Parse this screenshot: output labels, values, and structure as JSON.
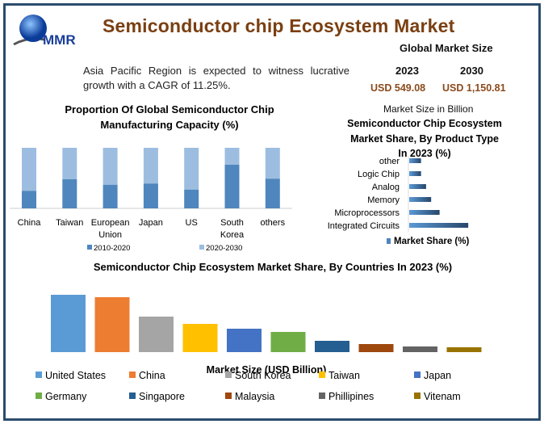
{
  "header": {
    "title": "Semiconductor chip Ecosystem Market",
    "logo_text": "MMR"
  },
  "summary": {
    "text_line1": "Asia Pacific Region is expected to witness lucrative",
    "text_line2": "growth with a CAGR of 11.25%."
  },
  "market_size": {
    "heading": "Global Market Size",
    "year1": "2023",
    "year2": "2030",
    "value1": "USD 549.08",
    "value2": "USD 1,150.81",
    "note": "Market Size in Billion"
  },
  "colors": {
    "title": "#7a3f12",
    "border": "#2b4c6f",
    "dark_blue": "#4f86bd",
    "light_blue": "#9dbde0"
  },
  "chart_data": [
    {
      "type": "bar",
      "stacked": true,
      "title_line1": "Proportion Of Global Semiconductor Chip",
      "title_line2": "Manufacturing Capacity (%)",
      "categories": [
        "China",
        "Taiwan",
        "European Union",
        "Japan",
        "US",
        "South Korea",
        "others"
      ],
      "series": [
        {
          "name": "2010-2020",
          "values": [
            29,
            48,
            39,
            41,
            31,
            72,
            49
          ],
          "color": "#4f86bd"
        },
        {
          "name": "2020-2030",
          "values": [
            71,
            52,
            61,
            59,
            69,
            28,
            51
          ],
          "color": "#9dbde0"
        }
      ],
      "legend": "bottom",
      "grid": false
    },
    {
      "type": "bar",
      "orientation": "horizontal",
      "title_line1": "Semiconductor Chip Ecosystem",
      "title_line2": "Market Share, By Product Type",
      "title_line3": "In 2023 (%)",
      "categories": [
        "other",
        "Logic Chip",
        "Analog",
        "Memory",
        "Microprocessors",
        "Integrated Circuits"
      ],
      "series": [
        {
          "name": "Market Share (%)",
          "values": [
            7,
            7,
            10,
            13,
            18,
            35
          ]
        }
      ],
      "legend": "bottom",
      "grid": false
    },
    {
      "type": "bar",
      "title": "Semiconductor Chip Ecosystem Market Share, By Countries In 2023 (%)",
      "xlabel": "Market Size (USD Billion)",
      "categories": [
        "United States",
        "China",
        "South Korea",
        "Taiwan",
        "Japan",
        "Germany",
        "Singapore",
        "Malaysia",
        "Phillipines",
        "Vitenam"
      ],
      "values": [
        71,
        68,
        44,
        35,
        29,
        25,
        14,
        10,
        7,
        6
      ],
      "colors": [
        "#5b9bd5",
        "#ed7d31",
        "#a5a5a5",
        "#ffc000",
        "#4472c4",
        "#70ad47",
        "#255e91",
        "#9e480e",
        "#636363",
        "#997300"
      ],
      "legend": "bottom",
      "grid": false
    }
  ]
}
